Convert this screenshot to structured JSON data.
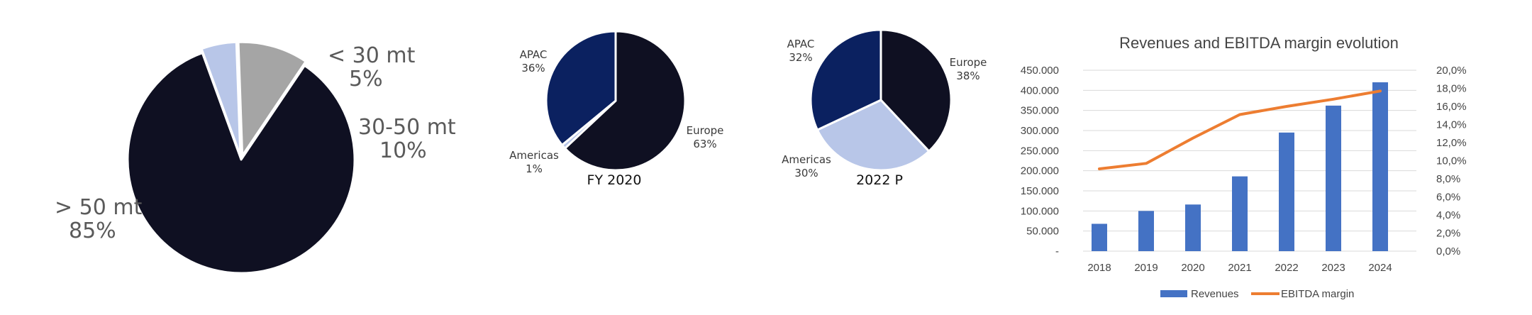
{
  "colors": {
    "navy": "#0f1022",
    "blue": "#0b2160",
    "lightblue": "#b8c6e8",
    "gray": "#a5a5a5",
    "bar": "#4472c4",
    "line": "#ed7d31",
    "grid": "#d9d9d9"
  },
  "chart_data": [
    {
      "type": "pie",
      "slices": [
        {
          "name": "> 50 mt",
          "value": 85,
          "pct_label": "85%",
          "color": "#0f1022"
        },
        {
          "name": "< 30 mt",
          "value": 5,
          "pct_label": "5%",
          "color": "#b8c6e8"
        },
        {
          "name": "30-50 mt",
          "value": 10,
          "pct_label": "10%",
          "color": "#a5a5a5"
        }
      ]
    },
    {
      "type": "pie",
      "title": "FY 2020",
      "slices": [
        {
          "name": "Europe",
          "value": 63,
          "pct_label": "63%",
          "color": "#0f1022"
        },
        {
          "name": "Americas",
          "value": 1,
          "pct_label": "1%",
          "color": "#b8c6e8"
        },
        {
          "name": "APAC",
          "value": 36,
          "pct_label": "36%",
          "color": "#0b2160"
        }
      ]
    },
    {
      "type": "pie",
      "title": "2022 P",
      "slices": [
        {
          "name": "Europe",
          "value": 38,
          "pct_label": "38%",
          "color": "#0f1022"
        },
        {
          "name": "Americas",
          "value": 30,
          "pct_label": "30%",
          "color": "#b8c6e8"
        },
        {
          "name": "APAC",
          "value": 32,
          "pct_label": "32%",
          "color": "#0b2160"
        }
      ]
    },
    {
      "type": "bar",
      "title": "Revenues and EBITDA margin evolution",
      "categories": [
        "2018",
        "2019",
        "2020",
        "2021",
        "2022",
        "2023",
        "2024"
      ],
      "series": [
        {
          "name": "Revenues",
          "type": "bar",
          "axis": "left",
          "values": [
            68000,
            100000,
            116000,
            186000,
            295000,
            362000,
            420000
          ]
        },
        {
          "name": "EBITDA margin",
          "type": "line",
          "axis": "right",
          "values": [
            9.1,
            9.7,
            12.5,
            15.1,
            16.0,
            16.8,
            17.7
          ]
        }
      ],
      "y_left": {
        "min": 0,
        "max": 450000,
        "ticks": [
          "-",
          "50.000",
          "100.000",
          "150.000",
          "200.000",
          "250.000",
          "300.000",
          "350.000",
          "400.000",
          "450.000"
        ]
      },
      "y_right": {
        "min": 0,
        "max": 20,
        "ticks": [
          "0,0%",
          "2,0%",
          "4,0%",
          "6,0%",
          "8,0%",
          "10,0%",
          "12,0%",
          "14,0%",
          "16,0%",
          "18,0%",
          "20,0%"
        ]
      },
      "grid": true,
      "legend": "bottom"
    }
  ]
}
